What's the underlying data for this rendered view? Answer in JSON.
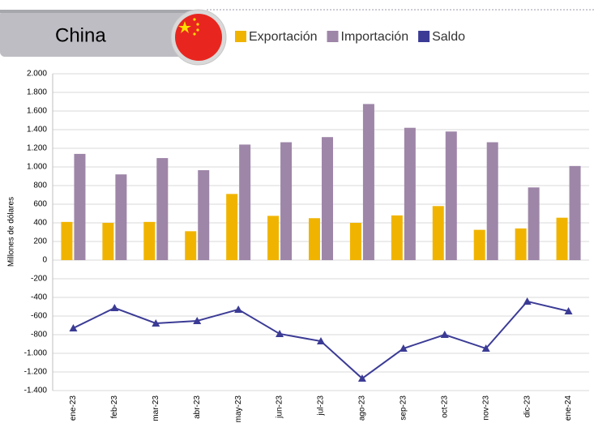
{
  "chart_data": {
    "type": "bar",
    "title": "China",
    "y_label": "Millones de dólares",
    "categories": [
      "ene-23",
      "feb-23",
      "mar-23",
      "abr-23",
      "may-23",
      "jun-23",
      "jul-23",
      "ago-23",
      "sep-23",
      "oct-23",
      "nov-23",
      "dic-23",
      "ene-24"
    ],
    "series": [
      {
        "name": "Exportación",
        "color": "#f0b400",
        "values": [
          410,
          400,
          410,
          310,
          710,
          475,
          450,
          400,
          480,
          580,
          325,
          340,
          455
        ]
      },
      {
        "name": "Importación",
        "color": "#9e86a8",
        "values": [
          1140,
          920,
          1095,
          965,
          1240,
          1265,
          1320,
          1675,
          1420,
          1380,
          1265,
          780,
          1010
        ]
      },
      {
        "name": "Saldo",
        "color": "#3b3b96",
        "type": "line",
        "values": [
          -730,
          -513,
          -678,
          -652,
          -530,
          -791,
          -870,
          -1270,
          -948,
          -800,
          -948,
          -443,
          -548
        ]
      }
    ],
    "ylim": [
      -1400,
      2000
    ],
    "yticks": [
      {
        "value": -1400,
        "label": "-1.400"
      },
      {
        "value": -1200,
        "label": "-1.200"
      },
      {
        "value": -1000,
        "label": "-1.000"
      },
      -800,
      -600,
      -400,
      -200,
      0,
      200,
      400,
      600,
      800,
      {
        "value": 1000,
        "label": "1.000"
      },
      {
        "value": 1200,
        "label": "1.200"
      },
      {
        "value": 1400,
        "label": "1.400"
      },
      {
        "value": 1600,
        "label": "1.600"
      },
      {
        "value": 1800,
        "label": "1.800"
      },
      {
        "value": 2000,
        "label": "2.000"
      }
    ],
    "grid": true
  }
}
